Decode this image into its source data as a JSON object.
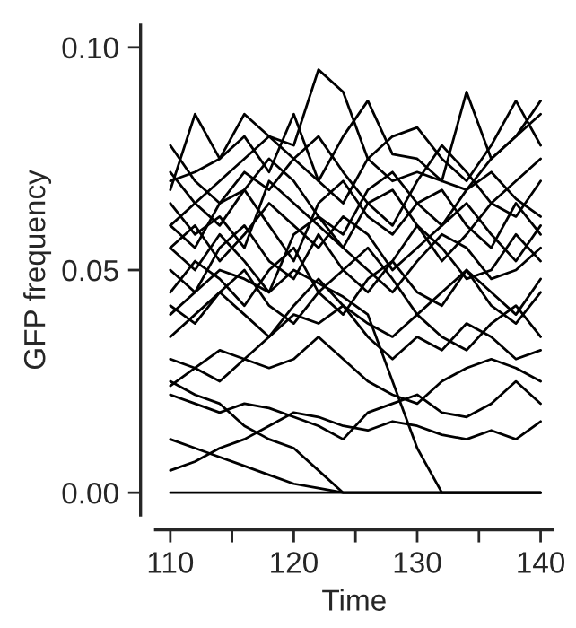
{
  "chart_data": {
    "type": "line",
    "xlabel": "Time",
    "ylabel": "GFP frequency",
    "x": [
      110,
      112,
      114,
      116,
      118,
      120,
      122,
      124,
      126,
      128,
      130,
      132,
      134,
      136,
      138,
      140
    ],
    "xlim": [
      108.8,
      141
    ],
    "ylim": [
      -0.005,
      0.105
    ],
    "xticks": [
      110,
      {
        "value": 115,
        "label": null
      },
      120,
      {
        "value": 125,
        "label": null
      },
      130,
      {
        "value": 135,
        "label": null
      },
      140
    ],
    "yticks": [
      {
        "value": 0,
        "label": "0.00"
      },
      {
        "value": 0.05,
        "label": "0.05"
      },
      {
        "value": 0.1,
        "label": "0.10"
      }
    ],
    "grid": false,
    "marker": "none",
    "line_style": "solid",
    "series": [
      {
        "color": "#000000",
        "values": [
          0,
          0,
          0,
          0,
          0,
          0,
          0,
          0,
          0,
          0,
          0,
          0,
          0,
          0,
          0,
          0
        ]
      },
      {
        "color": "#000000",
        "values": [
          0.012,
          0.01,
          0.008,
          0.006,
          0.004,
          0.002,
          0.001,
          0,
          0,
          0,
          0,
          0,
          0,
          0,
          0,
          0
        ]
      },
      {
        "color": "#000000",
        "values": [
          0.04,
          0.045,
          0.05,
          0.048,
          0.045,
          0.05,
          0.047,
          0.044,
          0.04,
          0.025,
          0.01,
          0,
          0,
          0,
          0,
          0
        ]
      },
      {
        "color": "#000000",
        "values": [
          0.025,
          0.022,
          0.02,
          0.015,
          0.012,
          0.01,
          0.005,
          0,
          0,
          0,
          0,
          0,
          0,
          0,
          0,
          0
        ]
      },
      {
        "color": "#000000",
        "values": [
          0.005,
          0.007,
          0.01,
          0.012,
          0.015,
          0.018,
          0.017,
          0.015,
          0.014,
          0.016,
          0.015,
          0.013,
          0.012,
          0.014,
          0.012,
          0.016
        ]
      },
      {
        "color": "#000000",
        "values": [
          0.022,
          0.02,
          0.018,
          0.02,
          0.019,
          0.017,
          0.015,
          0.012,
          0.018,
          0.02,
          0.022,
          0.018,
          0.017,
          0.02,
          0.025,
          0.02
        ]
      },
      {
        "color": "#000000",
        "values": [
          0.03,
          0.028,
          0.025,
          0.03,
          0.028,
          0.03,
          0.035,
          0.03,
          0.025,
          0.022,
          0.02,
          0.025,
          0.028,
          0.03,
          0.028,
          0.025
        ]
      },
      {
        "color": "#000000",
        "values": [
          0.06,
          0.065,
          0.07,
          0.075,
          0.08,
          0.078,
          0.095,
          0.09,
          0.075,
          0.07,
          0.072,
          0.07,
          0.068,
          0.075,
          0.08,
          0.085
        ]
      },
      {
        "color": "#000000",
        "values": [
          0.07,
          0.072,
          0.075,
          0.085,
          0.08,
          0.075,
          0.07,
          0.08,
          0.088,
          0.076,
          0.075,
          0.07,
          0.09,
          0.075,
          0.08,
          0.088
        ]
      },
      {
        "color": "#000000",
        "values": [
          0.068,
          0.085,
          0.075,
          0.08,
          0.072,
          0.085,
          0.07,
          0.065,
          0.075,
          0.08,
          0.082,
          0.075,
          0.07,
          0.078,
          0.088,
          0.078
        ]
      },
      {
        "color": "#000000",
        "values": [
          0.055,
          0.06,
          0.052,
          0.058,
          0.065,
          0.06,
          0.055,
          0.062,
          0.058,
          0.05,
          0.055,
          0.06,
          0.065,
          0.058,
          0.052,
          0.06
        ]
      },
      {
        "color": "#000000",
        "values": [
          0.05,
          0.045,
          0.055,
          0.06,
          0.052,
          0.048,
          0.058,
          0.05,
          0.045,
          0.052,
          0.06,
          0.055,
          0.048,
          0.05,
          0.058,
          0.052
        ]
      },
      {
        "color": "#000000",
        "values": [
          0.065,
          0.058,
          0.062,
          0.055,
          0.07,
          0.065,
          0.06,
          0.055,
          0.065,
          0.068,
          0.06,
          0.052,
          0.058,
          0.065,
          0.062,
          0.07
        ]
      },
      {
        "color": "#000000",
        "values": [
          0.045,
          0.052,
          0.048,
          0.042,
          0.05,
          0.055,
          0.045,
          0.04,
          0.048,
          0.052,
          0.045,
          0.042,
          0.05,
          0.045,
          0.04,
          0.048
        ]
      },
      {
        "color": "#000000",
        "values": [
          0.06,
          0.055,
          0.065,
          0.068,
          0.06,
          0.052,
          0.065,
          0.07,
          0.062,
          0.058,
          0.065,
          0.068,
          0.06,
          0.055,
          0.065,
          0.058
        ]
      },
      {
        "color": "#000000",
        "values": [
          0.035,
          0.04,
          0.045,
          0.05,
          0.042,
          0.038,
          0.045,
          0.05,
          0.055,
          0.048,
          0.04,
          0.045,
          0.05,
          0.042,
          0.038,
          0.045
        ]
      },
      {
        "color": "#000000",
        "values": [
          0.072,
          0.065,
          0.06,
          0.068,
          0.075,
          0.07,
          0.062,
          0.058,
          0.068,
          0.072,
          0.065,
          0.06,
          0.068,
          0.072,
          0.066,
          0.062
        ]
      },
      {
        "color": "#000000",
        "values": [
          0.055,
          0.05,
          0.058,
          0.052,
          0.045,
          0.058,
          0.062,
          0.055,
          0.05,
          0.045,
          0.052,
          0.058,
          0.055,
          0.048,
          0.05,
          0.055
        ]
      },
      {
        "color": "#000000",
        "values": [
          0.078,
          0.07,
          0.065,
          0.072,
          0.068,
          0.075,
          0.08,
          0.072,
          0.065,
          0.06,
          0.07,
          0.078,
          0.072,
          0.065,
          0.07,
          0.075
        ]
      },
      {
        "color": "#000000",
        "values": [
          0.042,
          0.038,
          0.045,
          0.04,
          0.035,
          0.042,
          0.048,
          0.042,
          0.038,
          0.035,
          0.04,
          0.035,
          0.032,
          0.038,
          0.042,
          0.035
        ]
      },
      {
        "color": "#000000",
        "values": [
          0.024,
          0.028,
          0.032,
          0.03,
          0.035,
          0.04,
          0.038,
          0.042,
          0.035,
          0.03,
          0.035,
          0.032,
          0.038,
          0.035,
          0.03,
          0.032
        ]
      }
    ]
  }
}
